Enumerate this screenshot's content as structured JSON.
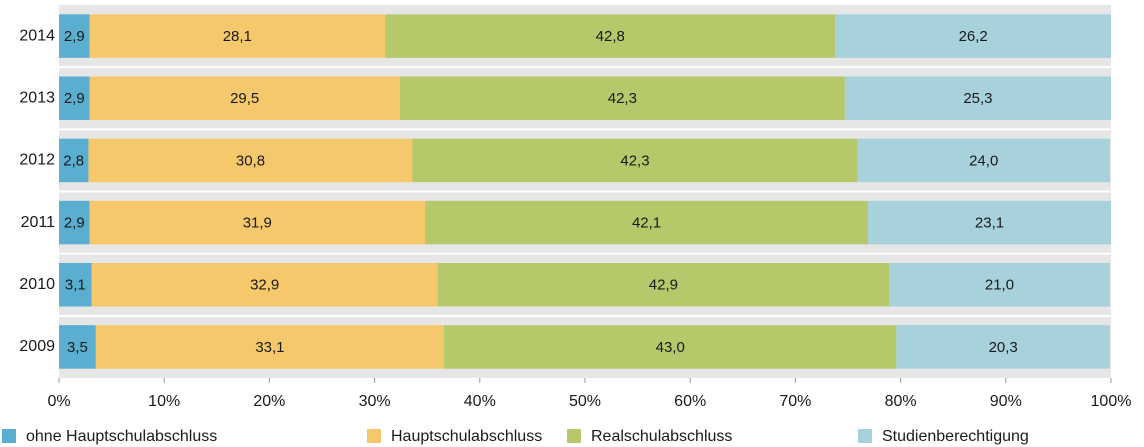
{
  "chart_data": {
    "type": "stacked_barh",
    "categories": [
      "2014",
      "2013",
      "2012",
      "2011",
      "2010",
      "2009"
    ],
    "series": [
      {
        "name": "ohne Hauptschulabschluss",
        "color": "#5aafd0",
        "values": [
          2.9,
          2.9,
          2.8,
          2.9,
          3.1,
          3.5
        ],
        "value_labels": [
          "2,9",
          "2,9",
          "2,8",
          "2,9",
          "3,1",
          "3,5"
        ]
      },
      {
        "name": "Hauptschulabschluss",
        "color": "#f5c96b",
        "values": [
          28.1,
          29.5,
          30.8,
          31.9,
          32.9,
          33.1
        ],
        "value_labels": [
          "28,1",
          "29,5",
          "30,8",
          "31,9",
          "32,9",
          "33,1"
        ]
      },
      {
        "name": "Realschulabschluss",
        "color": "#b5c96b",
        "values": [
          42.8,
          42.3,
          42.3,
          42.1,
          42.9,
          43.0
        ],
        "value_labels": [
          "42,8",
          "42,3",
          "42,3",
          "42,1",
          "42,9",
          "43,0"
        ]
      },
      {
        "name": "Studienberechtigung",
        "color": "#a7d2dc",
        "values": [
          26.2,
          25.3,
          24.0,
          23.1,
          21.0,
          20.3
        ],
        "value_labels": [
          "26,2",
          "25,3",
          "24,0",
          "23,1",
          "21,0",
          "20,3"
        ]
      }
    ],
    "xlim": [
      0,
      100
    ],
    "xticks": [
      {
        "value": 0,
        "label": "0%"
      },
      {
        "value": 10,
        "label": "10%"
      },
      {
        "value": 20,
        "label": "20%"
      },
      {
        "value": 30,
        "label": "30%"
      },
      {
        "value": 40,
        "label": "40%"
      },
      {
        "value": 50,
        "label": "50%"
      },
      {
        "value": 60,
        "label": "60%"
      },
      {
        "value": 70,
        "label": "70%"
      },
      {
        "value": 80,
        "label": "80%"
      },
      {
        "value": 90,
        "label": "90%"
      },
      {
        "value": 100,
        "label": "100%"
      }
    ],
    "legend": "bottom"
  }
}
